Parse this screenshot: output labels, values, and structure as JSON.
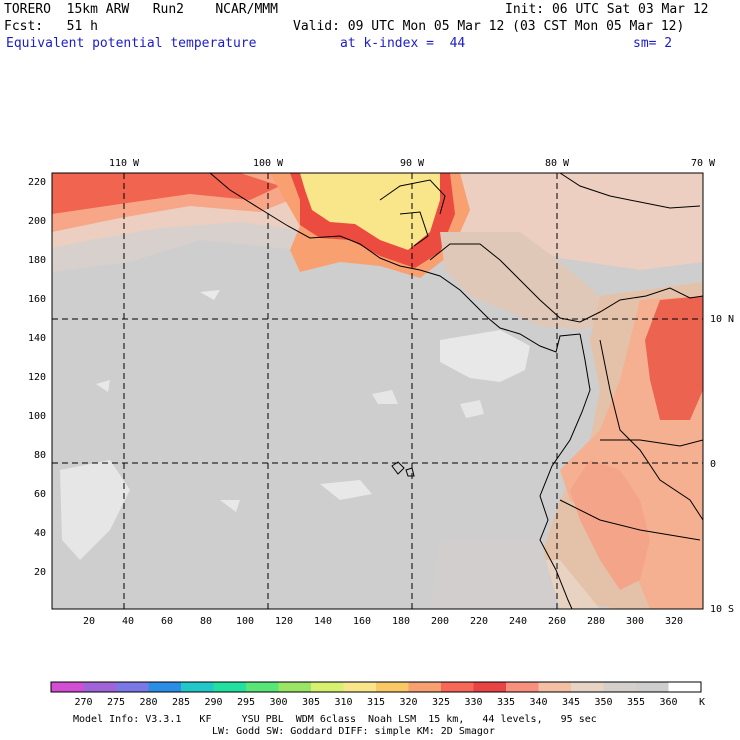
{
  "header": {
    "model_name": "TORERO  15km ARW   Run2    NCAR/MMM",
    "init": "Init: 06 UTC Sat 03 Mar 12",
    "fcst": "Fcst:   51 h",
    "valid": "Valid: 09 UTC Mon 05 Mar 12 (03 CST Mon 05 Mar 12)",
    "field": "Equivalent potential temperature",
    "level": "at k-index =  44",
    "smooth": "sm= 2"
  },
  "map": {
    "top_longitudes": [
      "110 W",
      "100 W",
      "90 W",
      "80 W",
      "70 W"
    ],
    "right_latitudes": [
      "10 N",
      "0",
      "10 S"
    ],
    "y_ticks": [
      "220",
      "200",
      "180",
      "160",
      "140",
      "120",
      "100",
      "80",
      "60",
      "40",
      "20"
    ],
    "x_ticks": [
      "20",
      "40",
      "60",
      "80",
      "100",
      "120",
      "140",
      "160",
      "180",
      "200",
      "220",
      "240",
      "260",
      "280",
      "300",
      "320"
    ]
  },
  "colorbar": {
    "labels": [
      "270",
      "275",
      "280",
      "285",
      "290",
      "295",
      "300",
      "305",
      "310",
      "315",
      "320",
      "325",
      "330",
      "335",
      "340",
      "345",
      "350",
      "355",
      "360"
    ],
    "unit": "K",
    "colors": [
      "#d24ed2",
      "#a064d8",
      "#7a78e6",
      "#2a8ee6",
      "#22c8c8",
      "#22e0a0",
      "#58e678",
      "#9ae664",
      "#d8f070",
      "#fae68a",
      "#fac864",
      "#f8a070",
      "#f86858",
      "#e84444",
      "#f89080",
      "#f4c0a4",
      "#e8d4c4",
      "#d6d0cc",
      "#cecece",
      "#ffffff"
    ]
  },
  "footer": {
    "line1": "Model Info: V3.3.1   KF     YSU PBL  WDM 6class  Noah LSM  15 km,   44 levels,   95 sec",
    "line2": "LW: Godd SW: Goddard DIFF: simple KM: 2D Smagor"
  }
}
